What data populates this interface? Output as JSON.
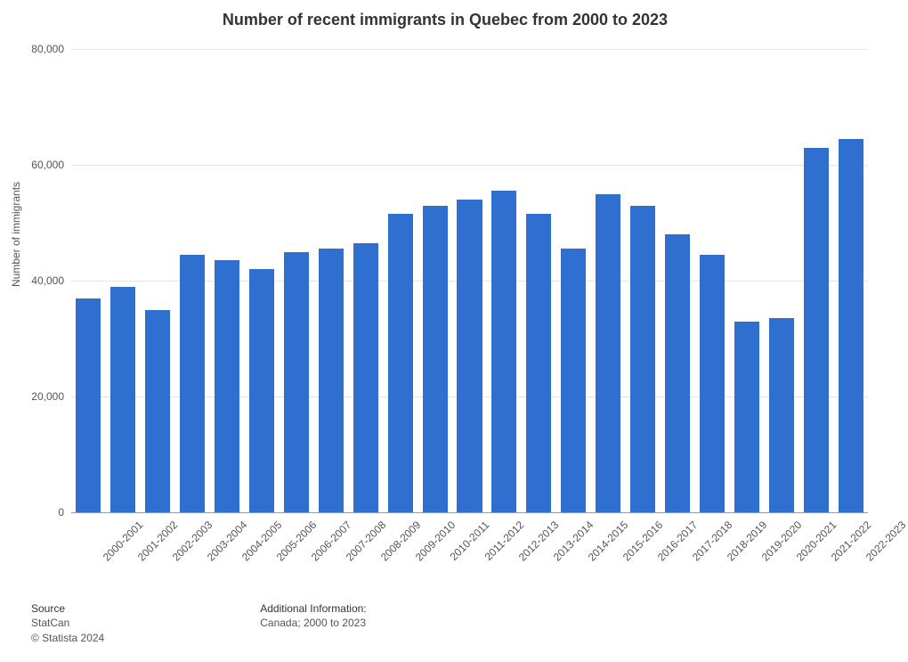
{
  "chart": {
    "type": "bar",
    "title": "Number of recent immigrants in Quebec from 2000 to 2023",
    "title_fontsize": 18,
    "title_color": "#333333",
    "background_color": "#ffffff",
    "bar_color": "#2f6fcf",
    "grid_color": "#e5e5e5",
    "axis_line_color": "#999999",
    "label_color": "#555555",
    "y_axis_title": "Number of immigrants",
    "ylim": [
      0,
      80000
    ],
    "yticks": [
      0,
      20000,
      40000,
      60000,
      80000
    ],
    "ytick_labels": [
      "0",
      "20,000",
      "40,000",
      "60,000",
      "80,000"
    ],
    "categories": [
      "2000-2001",
      "2001-2002",
      "2002-2003",
      "2003-2004",
      "2004-2005",
      "2005-2006",
      "2006-2007",
      "2007-2008",
      "2008-2009",
      "2009-2010",
      "2010-2011",
      "2011-2012",
      "2012-2013",
      "2013-2014",
      "2014-2015",
      "2015-2016",
      "2016-2017",
      "2017-2018",
      "2018-2019",
      "2019-2020",
      "2020-2021",
      "2021-2022",
      "2022-2023"
    ],
    "values": [
      37000,
      39000,
      35000,
      44500,
      43500,
      42000,
      45000,
      45500,
      46500,
      51500,
      53000,
      54000,
      55500,
      51500,
      45500,
      55000,
      53000,
      48000,
      44500,
      33000,
      33500,
      63000,
      64500
    ],
    "bar_width_ratio": 0.72,
    "label_fontsize": 12,
    "x_label_rotation": -45
  },
  "footer": {
    "source_heading": "Source",
    "source_value": "StatCan",
    "copyright": "© Statista 2024",
    "info_heading": "Additional Information:",
    "info_value": "Canada; 2000 to 2023"
  }
}
